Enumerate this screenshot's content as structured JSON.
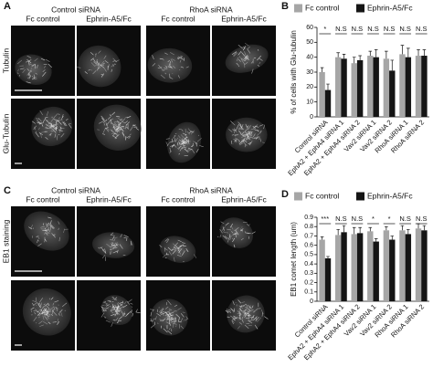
{
  "panels": {
    "A": {
      "letter": "A",
      "groups": [
        "Control siRNA",
        "RhoA siRNA"
      ],
      "conditions": [
        "Fc control",
        "Ephrin-A5/Fc",
        "Fc control",
        "Ephrin-A5/Fc"
      ],
      "rows": [
        "Tubulin",
        "Glu-Tubulin"
      ]
    },
    "C": {
      "letter": "C",
      "groups": [
        "Control siRNA",
        "RhoA siRNA"
      ],
      "conditions": [
        "Fc control",
        "Ephrin-A5/Fc",
        "Fc control",
        "Ephrin-A5/Fc"
      ],
      "rows": [
        "EB1 staining"
      ]
    }
  },
  "chart_data": [
    {
      "type": "bar",
      "panel_label": "B",
      "ylabel": "% of cells with Glu-tubulin",
      "categories": [
        "Control siRNA",
        "EphA2 + EphA4 siRNA 1",
        "EphA2 + EphA4 siRNA 2",
        "Vav2 siRNA 1",
        "Vav2 siRNA 2",
        "RhoA siRNA 1",
        "RhoA siRNA 2"
      ],
      "series": [
        {
          "name": "Fc control",
          "color": "#a6a6a6",
          "values": [
            30,
            40,
            36,
            41,
            39,
            42,
            41
          ],
          "errors": [
            3,
            3,
            4,
            3,
            5,
            6,
            4
          ]
        },
        {
          "name": "Ephrin-A5/Fc",
          "color": "#151515",
          "values": [
            18,
            39,
            38,
            40,
            31,
            40,
            41
          ],
          "errors": [
            4,
            3,
            3,
            5,
            7,
            6,
            4
          ]
        }
      ],
      "annotations": [
        "*",
        "N.S",
        "N.S",
        "N.S",
        "N.S",
        "N.S",
        "N.S"
      ],
      "ylim": [
        0,
        60
      ],
      "yticks": [
        0,
        10,
        20,
        30,
        40,
        50,
        60
      ],
      "legend": "top"
    },
    {
      "type": "bar",
      "panel_label": "D",
      "ylabel": "EB1 comet length (um)",
      "categories": [
        "Control siRNA",
        "EphA2 + EphA4 siRNA 1",
        "EphA2 + EphA4 siRNA 2",
        "Vav2 siRNA 1",
        "Vav2 siRNA 2",
        "RhoA siRNA 1",
        "RhoA siRNA 2"
      ],
      "series": [
        {
          "name": "Fc control",
          "color": "#a6a6a6",
          "values": [
            0.66,
            0.71,
            0.72,
            0.75,
            0.76,
            0.76,
            0.78
          ],
          "errors": [
            0.03,
            0.06,
            0.07,
            0.04,
            0.04,
            0.05,
            0.05
          ]
        },
        {
          "name": "Ephrin-A5/Fc",
          "color": "#151515",
          "values": [
            0.46,
            0.74,
            0.73,
            0.64,
            0.66,
            0.72,
            0.76
          ],
          "errors": [
            0.02,
            0.07,
            0.06,
            0.03,
            0.04,
            0.05,
            0.05
          ]
        }
      ],
      "annotations": [
        "***",
        "N.S",
        "N.S",
        "*",
        "*",
        "N.S",
        "N.S"
      ],
      "ylim": [
        0,
        0.9
      ],
      "yticks": [
        0,
        0.1,
        0.2,
        0.3,
        0.4,
        0.5,
        0.6,
        0.7,
        0.8,
        0.9
      ],
      "legend": "top"
    }
  ]
}
